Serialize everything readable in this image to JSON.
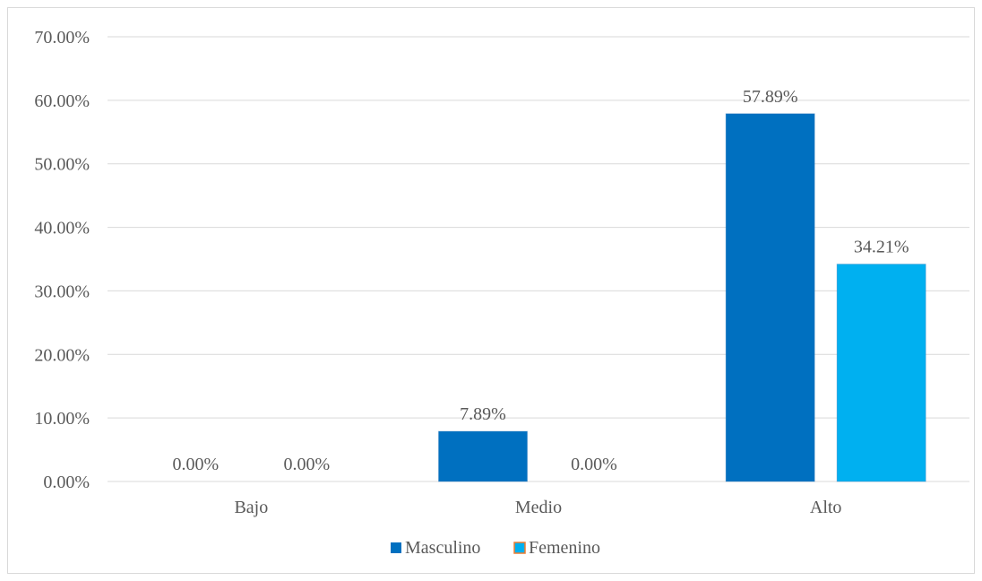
{
  "chart_data": {
    "type": "bar",
    "categories": [
      "Bajo",
      "Medio",
      "Alto"
    ],
    "series": [
      {
        "name": "Masculino",
        "values": [
          0.0,
          7.89,
          57.89
        ],
        "color": "#0070C0",
        "labels": [
          "0.00%",
          "7.89%",
          "57.89%"
        ]
      },
      {
        "name": "Femenino",
        "values": [
          0.0,
          0.0,
          34.21
        ],
        "color": "#00B0F0",
        "legend_border": "#ED7D31",
        "labels": [
          "0.00%",
          "0.00%",
          "34.21%"
        ]
      }
    ],
    "ylim": [
      0,
      70
    ],
    "yticks": [
      0,
      10,
      20,
      30,
      40,
      50,
      60,
      70
    ],
    "ytick_labels": [
      "0.00%",
      "10.00%",
      "20.00%",
      "30.00%",
      "40.00%",
      "50.00%",
      "60.00%",
      "70.00%"
    ],
    "grid": true,
    "legend": "bottom"
  }
}
